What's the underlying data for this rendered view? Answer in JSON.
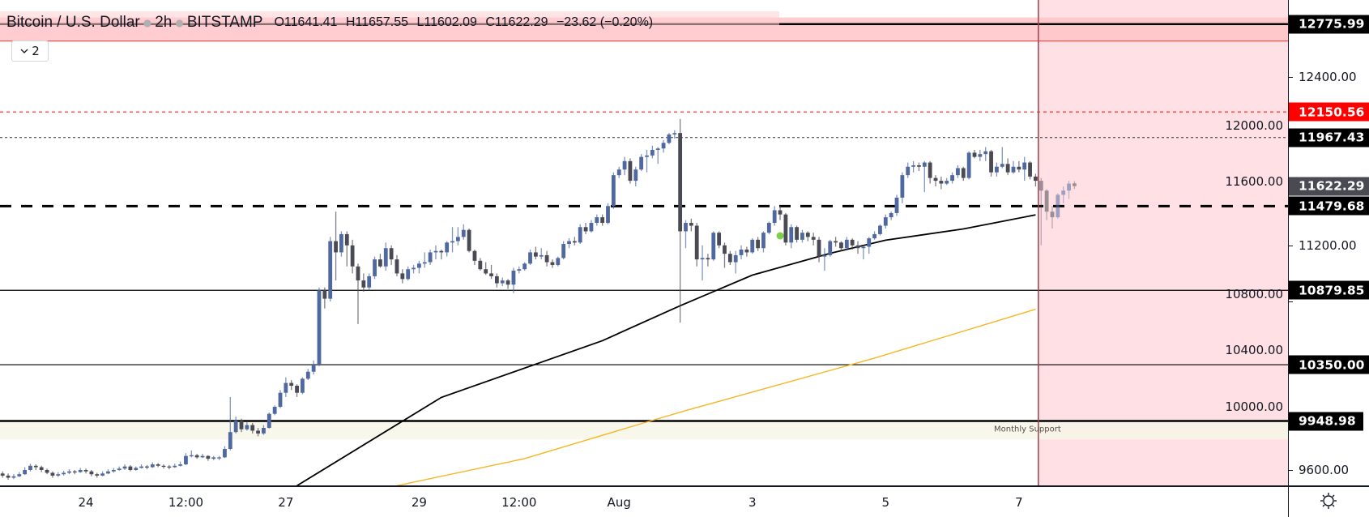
{
  "header": {
    "symbol": "Bitcoin / U.S. Dollar",
    "interval": "2h",
    "exchange": "BITSTAMP",
    "open": "O11641.41",
    "high": "H11657.55",
    "low": "L11602.09",
    "close": "C11622.29",
    "change": "−23.62 (−0.20%)"
  },
  "legend_toggle": {
    "icon": "chevron-down-icon",
    "count": "2"
  },
  "colors": {
    "up_candle": "#4f69a0",
    "down_candle": "#4a4a55",
    "last_price_badge": "#4a4a52",
    "alert_badge": "#ff0000",
    "level_badge": "#000000",
    "ma_slow": "#000000",
    "ma_fast": "#f5b622",
    "projection_zone": "#ffe1e5",
    "resistance_band": "#ffc4c8",
    "support_band": "#f7f6e8",
    "marker_dot": "#7ed04a"
  },
  "chart_data": {
    "type": "candlestick",
    "ylim": [
      9480,
      12880
    ],
    "y_ticks": [
      "12400.00",
      "12000.00",
      "11600.00",
      "11200.00",
      "10800.00",
      "10400.00",
      "10000.00",
      "9600.00"
    ],
    "x_ticks": [
      "24",
      "12:00",
      "27",
      "29",
      "12:00",
      "Aug",
      "3",
      "5",
      "7"
    ],
    "candles_ohlc": [
      [
        9575,
        9590,
        9545,
        9560
      ],
      [
        9560,
        9575,
        9530,
        9545
      ],
      [
        9545,
        9570,
        9535,
        9555
      ],
      [
        9555,
        9585,
        9550,
        9570
      ],
      [
        9570,
        9620,
        9565,
        9600
      ],
      [
        9600,
        9645,
        9590,
        9630
      ],
      [
        9630,
        9640,
        9600,
        9620
      ],
      [
        9620,
        9630,
        9585,
        9600
      ],
      [
        9600,
        9610,
        9570,
        9580
      ],
      [
        9580,
        9590,
        9545,
        9560
      ],
      [
        9560,
        9585,
        9550,
        9570
      ],
      [
        9570,
        9595,
        9560,
        9580
      ],
      [
        9580,
        9605,
        9570,
        9590
      ],
      [
        9590,
        9600,
        9570,
        9585
      ],
      [
        9585,
        9615,
        9580,
        9600
      ],
      [
        9600,
        9610,
        9575,
        9590
      ],
      [
        9590,
        9600,
        9555,
        9570
      ],
      [
        9570,
        9580,
        9545,
        9560
      ],
      [
        9560,
        9590,
        9555,
        9575
      ],
      [
        9575,
        9605,
        9570,
        9590
      ],
      [
        9590,
        9615,
        9580,
        9600
      ],
      [
        9600,
        9625,
        9595,
        9610
      ],
      [
        9610,
        9640,
        9600,
        9625
      ],
      [
        9625,
        9635,
        9590,
        9600
      ],
      [
        9600,
        9625,
        9595,
        9615
      ],
      [
        9615,
        9640,
        9610,
        9625
      ],
      [
        9625,
        9635,
        9605,
        9620
      ],
      [
        9620,
        9655,
        9615,
        9640
      ],
      [
        9640,
        9650,
        9620,
        9630
      ],
      [
        9630,
        9640,
        9610,
        9625
      ],
      [
        9625,
        9635,
        9605,
        9620
      ],
      [
        9620,
        9645,
        9615,
        9630
      ],
      [
        9630,
        9660,
        9625,
        9640
      ],
      [
        9640,
        9720,
        9635,
        9700
      ],
      [
        9700,
        9740,
        9690,
        9705
      ],
      [
        9705,
        9715,
        9680,
        9690
      ],
      [
        9690,
        9715,
        9685,
        9700
      ],
      [
        9700,
        9705,
        9665,
        9680
      ],
      [
        9680,
        9700,
        9670,
        9690
      ],
      [
        9690,
        9700,
        9670,
        9690
      ],
      [
        9690,
        9770,
        9685,
        9750
      ],
      [
        9750,
        10120,
        9740,
        9870
      ],
      [
        9870,
        9980,
        9860,
        9950
      ],
      [
        9950,
        9965,
        9870,
        9890
      ],
      [
        9890,
        9940,
        9880,
        9920
      ],
      [
        9920,
        9935,
        9860,
        9880
      ],
      [
        9880,
        9900,
        9840,
        9860
      ],
      [
        9860,
        9920,
        9850,
        9900
      ],
      [
        9900,
        10010,
        9895,
        10000
      ],
      [
        10000,
        10060,
        9990,
        10050
      ],
      [
        10050,
        10170,
        10040,
        10150
      ],
      [
        10150,
        10260,
        10120,
        10220
      ],
      [
        10220,
        10240,
        10170,
        10200
      ],
      [
        10200,
        10210,
        10120,
        10150
      ],
      [
        10150,
        10260,
        10140,
        10250
      ],
      [
        10250,
        10320,
        10240,
        10300
      ],
      [
        10300,
        10380,
        10280,
        10350
      ],
      [
        10350,
        10900,
        10340,
        10880
      ],
      [
        10880,
        10900,
        10750,
        10820
      ],
      [
        10820,
        11260,
        10800,
        11230
      ],
      [
        11230,
        11440,
        10950,
        11150
      ],
      [
        11150,
        11300,
        11120,
        11280
      ],
      [
        11280,
        11300,
        11050,
        11200
      ],
      [
        11200,
        11240,
        11000,
        11050
      ],
      [
        11050,
        11070,
        10640,
        10950
      ],
      [
        10950,
        11000,
        10870,
        10900
      ],
      [
        10900,
        11000,
        10880,
        10980
      ],
      [
        10980,
        11120,
        10960,
        11100
      ],
      [
        11100,
        11140,
        11040,
        11050
      ],
      [
        11050,
        11220,
        11020,
        11180
      ],
      [
        11180,
        11200,
        11060,
        11100
      ],
      [
        11100,
        11130,
        10980,
        11000
      ],
      [
        11000,
        11030,
        10930,
        10960
      ],
      [
        10960,
        11050,
        10950,
        11030
      ],
      [
        11030,
        11060,
        11000,
        11040
      ],
      [
        11040,
        11090,
        11000,
        11070
      ],
      [
        11070,
        11150,
        11040,
        11080
      ],
      [
        11080,
        11170,
        11060,
        11150
      ],
      [
        11150,
        11200,
        11100,
        11160
      ],
      [
        11160,
        11170,
        11100,
        11150
      ],
      [
        11150,
        11230,
        11120,
        11220
      ],
      [
        11220,
        11330,
        11150,
        11230
      ],
      [
        11230,
        11330,
        11200,
        11260
      ],
      [
        11260,
        11350,
        11240,
        11310
      ],
      [
        11310,
        11320,
        11150,
        11160
      ],
      [
        11160,
        11170,
        11060,
        11090
      ],
      [
        11090,
        11110,
        11020,
        11030
      ],
      [
        11030,
        11080,
        10990,
        11000
      ],
      [
        11000,
        11060,
        10960,
        10980
      ],
      [
        10980,
        11000,
        10900,
        10930
      ],
      [
        10930,
        10970,
        10910,
        10950
      ],
      [
        10950,
        10960,
        10890,
        10920
      ],
      [
        10920,
        11040,
        10860,
        11020
      ],
      [
        11020,
        11050,
        11000,
        11030
      ],
      [
        11030,
        11080,
        11020,
        11070
      ],
      [
        11070,
        11170,
        11060,
        11150
      ],
      [
        11150,
        11190,
        11100,
        11120
      ],
      [
        11120,
        11180,
        11100,
        11130
      ],
      [
        11130,
        11160,
        11050,
        11080
      ],
      [
        11080,
        11100,
        11040,
        11060
      ],
      [
        11060,
        11120,
        11050,
        11110
      ],
      [
        11110,
        11230,
        11100,
        11210
      ],
      [
        11210,
        11250,
        11180,
        11230
      ],
      [
        11230,
        11260,
        11200,
        11220
      ],
      [
        11220,
        11350,
        11210,
        11330
      ],
      [
        11330,
        11360,
        11280,
        11300
      ],
      [
        11300,
        11380,
        11290,
        11360
      ],
      [
        11360,
        11420,
        11340,
        11400
      ],
      [
        11400,
        11420,
        11340,
        11360
      ],
      [
        11360,
        11500,
        11350,
        11480
      ],
      [
        11480,
        11720,
        11460,
        11700
      ],
      [
        11700,
        11760,
        11680,
        11740
      ],
      [
        11740,
        11830,
        11700,
        11800
      ],
      [
        11800,
        11820,
        11640,
        11660
      ],
      [
        11660,
        11760,
        11620,
        11740
      ],
      [
        11740,
        11850,
        11730,
        11830
      ],
      [
        11830,
        11880,
        11720,
        11840
      ],
      [
        11840,
        11910,
        11820,
        11880
      ],
      [
        11880,
        11900,
        11780,
        11890
      ],
      [
        11890,
        11950,
        11860,
        11930
      ],
      [
        11930,
        12000,
        11920,
        11990
      ],
      [
        11990,
        12020,
        11960,
        12000
      ],
      [
        12000,
        12100,
        10650,
        11300
      ],
      [
        11300,
        11380,
        11180,
        11360
      ],
      [
        11360,
        11390,
        11300,
        11340
      ],
      [
        11340,
        11360,
        11050,
        11100
      ],
      [
        11100,
        11200,
        10950,
        11110
      ],
      [
        11110,
        11140,
        11050,
        11100
      ],
      [
        11100,
        11300,
        11090,
        11290
      ],
      [
        11290,
        11300,
        11180,
        11200
      ],
      [
        11200,
        11220,
        11040,
        11140
      ],
      [
        11140,
        11160,
        11060,
        11080
      ],
      [
        11080,
        11160,
        11000,
        11130
      ],
      [
        11130,
        11200,
        11100,
        11170
      ],
      [
        11170,
        11190,
        11120,
        11150
      ],
      [
        11150,
        11250,
        11140,
        11240
      ],
      [
        11240,
        11260,
        11160,
        11180
      ],
      [
        11180,
        11300,
        11150,
        11290
      ],
      [
        11290,
        11370,
        11280,
        11360
      ],
      [
        11360,
        11480,
        11340,
        11450
      ],
      [
        11450,
        11480,
        11380,
        11420
      ],
      [
        11420,
        11430,
        11200,
        11220
      ],
      [
        11220,
        11350,
        11180,
        11330
      ],
      [
        11330,
        11340,
        11220,
        11240
      ],
      [
        11240,
        11310,
        11220,
        11290
      ],
      [
        11290,
        11300,
        11230,
        11260
      ],
      [
        11260,
        11290,
        11200,
        11240
      ],
      [
        11240,
        11260,
        11080,
        11120
      ],
      [
        11120,
        11180,
        11020,
        11130
      ],
      [
        11130,
        11240,
        11120,
        11230
      ],
      [
        11230,
        11260,
        11190,
        11220
      ],
      [
        11220,
        11230,
        11160,
        11180
      ],
      [
        11180,
        11260,
        11170,
        11240
      ],
      [
        11240,
        11250,
        11170,
        11200
      ],
      [
        11200,
        11230,
        11140,
        11180
      ],
      [
        11180,
        11200,
        11100,
        11190
      ],
      [
        11190,
        11260,
        11140,
        11250
      ],
      [
        11250,
        11300,
        11240,
        11280
      ],
      [
        11280,
        11350,
        11270,
        11340
      ],
      [
        11340,
        11420,
        11320,
        11400
      ],
      [
        11400,
        11440,
        11380,
        11430
      ],
      [
        11430,
        11560,
        11410,
        11540
      ],
      [
        11540,
        11720,
        11500,
        11700
      ],
      [
        11700,
        11790,
        11680,
        11760
      ],
      [
        11760,
        11800,
        11720,
        11770
      ],
      [
        11770,
        11790,
        11730,
        11760
      ],
      [
        11760,
        11800,
        11580,
        11790
      ],
      [
        11790,
        11800,
        11640,
        11680
      ],
      [
        11680,
        11700,
        11620,
        11660
      ],
      [
        11660,
        11690,
        11600,
        11640
      ],
      [
        11640,
        11680,
        11630,
        11660
      ],
      [
        11660,
        11720,
        11640,
        11700
      ],
      [
        11700,
        11770,
        11680,
        11750
      ],
      [
        11750,
        11760,
        11660,
        11680
      ],
      [
        11680,
        11870,
        11670,
        11860
      ],
      [
        11860,
        11880,
        11820,
        11830
      ],
      [
        11830,
        11880,
        11800,
        11850
      ],
      [
        11850,
        11900,
        11800,
        11870
      ],
      [
        11870,
        11880,
        11690,
        11720
      ],
      [
        11720,
        11790,
        11690,
        11760
      ],
      [
        11760,
        11900,
        11750,
        11780
      ],
      [
        11780,
        11820,
        11700,
        11720
      ],
      [
        11720,
        11800,
        11710,
        11760
      ],
      [
        11760,
        11800,
        11720,
        11740
      ],
      [
        11740,
        11830,
        11660,
        11790
      ],
      [
        11790,
        11800,
        11670,
        11690
      ],
      [
        11690,
        11710,
        11620,
        11660
      ],
      [
        11660,
        11680,
        11200,
        11590
      ],
      [
        11590,
        11600,
        11380,
        11440
      ],
      [
        11440,
        11480,
        11320,
        11400
      ],
      [
        11400,
        11570,
        11390,
        11560
      ],
      [
        11560,
        11620,
        11500,
        11590
      ],
      [
        11590,
        11660,
        11530,
        11640
      ],
      [
        11641.41,
        11657.55,
        11602.09,
        11622.29
      ]
    ],
    "moving_averages": [
      {
        "color": "#000000",
        "points_bar_price": [
          [
            53,
            9488
          ],
          [
            79,
            10117
          ],
          [
            108,
            10521
          ],
          [
            122,
            10770
          ],
          [
            135,
            10988
          ],
          [
            149,
            11143
          ],
          [
            159,
            11237
          ],
          [
            173,
            11317
          ],
          [
            186,
            11417
          ]
        ]
      },
      {
        "color": "#f5b622",
        "points_bar_price": [
          [
            71,
            9488
          ],
          [
            94,
            9681
          ],
          [
            116,
            9942
          ],
          [
            123,
            10023
          ],
          [
            157,
            10397
          ],
          [
            186,
            10745
          ]
        ]
      }
    ],
    "horizontal_levels": [
      {
        "price": "12775.99",
        "style": "solid-thick",
        "color": "#000000",
        "badge": "#000000"
      },
      {
        "price": "12150.56",
        "style": "dashed",
        "color": "#ff0000",
        "badge": "#ff0000"
      },
      {
        "price": "11967.43",
        "style": "dotted",
        "color": "#333333",
        "badge": "#000000"
      },
      {
        "price": "11622.29",
        "style": "last-price",
        "color": "#4a4a52",
        "badge": "#4a4a52"
      },
      {
        "price": "11479.68",
        "style": "dashed-thick",
        "color": "#000000",
        "badge": "#000000"
      },
      {
        "price": "10879.85",
        "style": "solid",
        "color": "#000000",
        "badge": "#000000"
      },
      {
        "price": "10350.00",
        "style": "solid",
        "color": "#000000",
        "badge": "#000000"
      },
      {
        "price": "9948.98",
        "style": "solid-thick",
        "color": "#000000",
        "badge": "#000000"
      }
    ],
    "zones": [
      {
        "from": 12655,
        "to": 12823,
        "color": "#ffc4c8"
      },
      {
        "from": 9818,
        "to": 9948.98,
        "color": "#f7f6e8"
      }
    ],
    "annotations": [
      {
        "text": "Monthly Support"
      }
    ],
    "marker": {
      "bar": 140,
      "price": 11268,
      "color": "#7ed04a"
    }
  },
  "settings_icon": "gear-icon"
}
